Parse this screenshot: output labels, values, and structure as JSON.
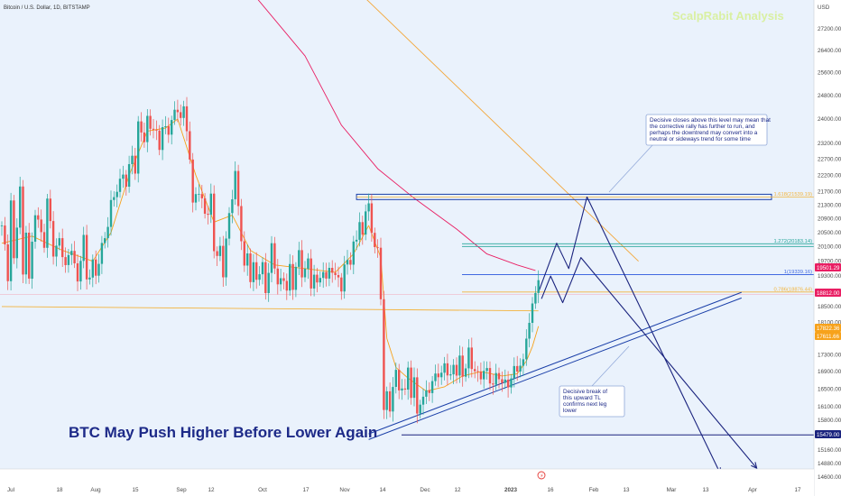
{
  "chart_data": {
    "type": "candlestick",
    "symbol_title": "Bitcoin / U.S. Dollar, 1D, BITSTAMP",
    "publisher": "ScalpRabit Analysis",
    "title": "BTC May Push Higher Before Lower Again",
    "currency": "USD",
    "event_marker": "⚡",
    "y_ticks": [
      27200,
      26400,
      25600,
      24800,
      24000,
      23200,
      22700,
      22200,
      21700,
      21300,
      20900,
      20500,
      20100,
      19700,
      19300,
      18500,
      18100,
      17700,
      17300,
      16900,
      16500,
      16100,
      15800,
      15160,
      14880,
      14600
    ],
    "x_ticks": [
      "Jul",
      "18",
      "Aug",
      "15",
      "Sep",
      "12",
      "Oct",
      "17",
      "Nov",
      "14",
      "Dec",
      "12",
      "2023",
      "16",
      "Feb",
      "13",
      "Mar",
      "13",
      "Apr",
      "17"
    ],
    "price_labels": [
      {
        "text": "19501.29",
        "color": "#e91e63"
      },
      {
        "text": "18812.00",
        "color": "#e91e63"
      },
      {
        "text": "17822.36",
        "color": "#f7a21b"
      },
      {
        "text": "17611.66",
        "color": "#f7a21b"
      },
      {
        "text": "15479.00",
        "color": "#1a237e"
      }
    ],
    "fib_levels": [
      {
        "label": "1.618(21539.19)",
        "color": "#f2b43a"
      },
      {
        "label": "1.272(20183.14)",
        "color": "#26a69a"
      },
      {
        "label": "1(19339.16)",
        "color": "#4169e1"
      },
      {
        "label": "0.786(18876.44)",
        "color": "#f2b43a"
      }
    ],
    "key_levels": [
      21539.19,
      20183.14,
      19339.16,
      18876.44,
      15479.0
    ],
    "annotations": [
      {
        "lines": [
          "Decisive closes above this level may mean that",
          "the corrective rally has further to run, and",
          "perhaps the downtrend may convert into a",
          "neutral or sideways trend for some time"
        ]
      },
      {
        "lines": [
          "Decisive break of",
          "this upward TL",
          "confirms next leg",
          "lower"
        ]
      }
    ],
    "colors": {
      "up": "#26a69a",
      "down": "#ef5350",
      "ema": "#f7a21b",
      "ma": "#e91e63",
      "projection": "#1a237e",
      "trendline": "#1a3fa8"
    },
    "ohlc_path": [
      [
        0,
        20700
      ],
      [
        2,
        19200
      ],
      [
        3,
        21500
      ],
      [
        4,
        19800
      ],
      [
        6,
        21700
      ],
      [
        7,
        19200
      ],
      [
        8,
        20700
      ],
      [
        9,
        19300
      ],
      [
        11,
        21000
      ],
      [
        14,
        20300
      ],
      [
        15,
        21400
      ],
      [
        17,
        19900
      ],
      [
        19,
        20400
      ],
      [
        21,
        19400
      ],
      [
        23,
        20200
      ],
      [
        25,
        19100
      ],
      [
        27,
        20300
      ],
      [
        28,
        19300
      ],
      [
        30,
        19600
      ],
      [
        31,
        19200
      ],
      [
        33,
        20200
      ],
      [
        35,
        20700
      ],
      [
        36,
        21200
      ],
      [
        38,
        21900
      ],
      [
        40,
        22200
      ],
      [
        41,
        21800
      ],
      [
        43,
        23000
      ],
      [
        44,
        22400
      ],
      [
        45,
        23700
      ],
      [
        47,
        23300
      ],
      [
        48,
        24100
      ],
      [
        50,
        23600
      ],
      [
        52,
        23100
      ],
      [
        53,
        23900
      ],
      [
        55,
        23500
      ],
      [
        57,
        24200
      ],
      [
        58,
        24500
      ],
      [
        59,
        24100
      ],
      [
        60,
        24200
      ],
      [
        61,
        23600
      ],
      [
        62,
        22700
      ],
      [
        63,
        21400
      ],
      [
        64,
        21800
      ],
      [
        65,
        21500
      ],
      [
        66,
        21300
      ],
      [
        68,
        21100
      ],
      [
        69,
        21600
      ],
      [
        70,
        20000
      ],
      [
        71,
        19700
      ],
      [
        72,
        20100
      ],
      [
        73,
        19500
      ],
      [
        74,
        20300
      ],
      [
        76,
        21500
      ],
      [
        77,
        22300
      ],
      [
        79,
        20400
      ],
      [
        80,
        19400
      ],
      [
        81,
        19800
      ],
      [
        82,
        19300
      ],
      [
        83,
        19700
      ],
      [
        84,
        19200
      ],
      [
        86,
        19500
      ],
      [
        87,
        18900
      ],
      [
        88,
        19600
      ],
      [
        89,
        20100
      ],
      [
        90,
        19400
      ],
      [
        91,
        19100
      ],
      [
        93,
        19300
      ],
      [
        94,
        19000
      ],
      [
        95,
        19400
      ],
      [
        96,
        18900
      ],
      [
        97,
        19700
      ],
      [
        98,
        20000
      ],
      [
        99,
        19300
      ],
      [
        101,
        19600
      ],
      [
        102,
        19100
      ],
      [
        103,
        19500
      ],
      [
        104,
        19000
      ],
      [
        106,
        19400
      ],
      [
        107,
        19200
      ],
      [
        108,
        19700
      ],
      [
        110,
        19100
      ],
      [
        111,
        19300
      ],
      [
        112,
        19000
      ],
      [
        113,
        19600
      ],
      [
        114,
        19800
      ],
      [
        115,
        19500
      ],
      [
        116,
        20100
      ],
      [
        117,
        20500
      ],
      [
        118,
        20900
      ],
      [
        119,
        20300
      ],
      [
        120,
        21100
      ],
      [
        121,
        21300
      ],
      [
        122,
        20500
      ],
      [
        123,
        20300
      ],
      [
        124,
        20000
      ],
      [
        125,
        18500
      ],
      [
        126,
        16100
      ],
      [
        127,
        16500
      ],
      [
        128,
        16000
      ],
      [
        129,
        16600
      ],
      [
        130,
        16800
      ],
      [
        131,
        16400
      ],
      [
        132,
        16700
      ],
      [
        133,
        16500
      ],
      [
        134,
        16900
      ],
      [
        135,
        16300
      ],
      [
        136,
        16700
      ],
      [
        137,
        16000
      ],
      [
        138,
        16300
      ],
      [
        139,
        16200
      ],
      [
        141,
        16500
      ],
      [
        143,
        16900
      ],
      [
        145,
        16700
      ],
      [
        146,
        17100
      ],
      [
        147,
        17000
      ],
      [
        148,
        16800
      ],
      [
        149,
        17000
      ],
      [
        150,
        16800
      ],
      [
        151,
        17200
      ],
      [
        152,
        16900
      ],
      [
        153,
        17100
      ],
      [
        154,
        17300
      ],
      [
        155,
        16900
      ],
      [
        156,
        17000
      ],
      [
        158,
        16800
      ],
      [
        159,
        16900
      ],
      [
        161,
        16700
      ],
      [
        163,
        16800
      ],
      [
        165,
        16600
      ],
      [
        167,
        16700
      ],
      [
        168,
        16800
      ],
      [
        170,
        16900
      ],
      [
        171,
        17100
      ],
      [
        172,
        17200
      ],
      [
        173,
        17800
      ],
      [
        174,
        18000
      ],
      [
        175,
        18400
      ],
      [
        176,
        19000
      ],
      [
        177,
        19300
      ]
    ],
    "ema_path": [
      [
        0,
        20200
      ],
      [
        10,
        20400
      ],
      [
        20,
        20000
      ],
      [
        30,
        19700
      ],
      [
        36,
        20500
      ],
      [
        42,
        22200
      ],
      [
        48,
        23600
      ],
      [
        54,
        23700
      ],
      [
        58,
        24000
      ],
      [
        64,
        22200
      ],
      [
        70,
        20800
      ],
      [
        76,
        21000
      ],
      [
        82,
        20000
      ],
      [
        90,
        19600
      ],
      [
        100,
        19500
      ],
      [
        110,
        19400
      ],
      [
        116,
        19900
      ],
      [
        121,
        20700
      ],
      [
        125,
        19800
      ],
      [
        127,
        17700
      ],
      [
        130,
        17000
      ],
      [
        134,
        16750
      ],
      [
        140,
        16450
      ],
      [
        146,
        16550
      ],
      [
        152,
        16800
      ],
      [
        158,
        16900
      ],
      [
        165,
        16800
      ],
      [
        170,
        16850
      ],
      [
        173,
        17150
      ],
      [
        175,
        17500
      ],
      [
        177,
        18000
      ]
    ],
    "ma_path": [
      [
        84,
        28400
      ],
      [
        100,
        26200
      ],
      [
        112,
        23800
      ],
      [
        124,
        22400
      ],
      [
        136,
        21500
      ],
      [
        150,
        20600
      ],
      [
        160,
        19900
      ],
      [
        170,
        19600
      ],
      [
        176,
        19450
      ]
    ],
    "resistance_line": [
      [
        118,
        28600
      ],
      [
        210,
        19700
      ]
    ],
    "flat_line": [
      [
        0,
        18500
      ],
      [
        177,
        18390
      ]
    ],
    "trendline": [
      [
        121,
        15380
      ],
      [
        244,
        18720
      ]
    ],
    "projection_1": [
      [
        177,
        18870
      ],
      [
        183,
        20200
      ],
      [
        187,
        19500
      ],
      [
        193,
        21540
      ],
      [
        237,
        14670
      ]
    ],
    "projection_2": [
      [
        178,
        18700
      ],
      [
        181,
        19300
      ],
      [
        185,
        18600
      ],
      [
        191,
        19800
      ],
      [
        249,
        14780
      ]
    ]
  }
}
